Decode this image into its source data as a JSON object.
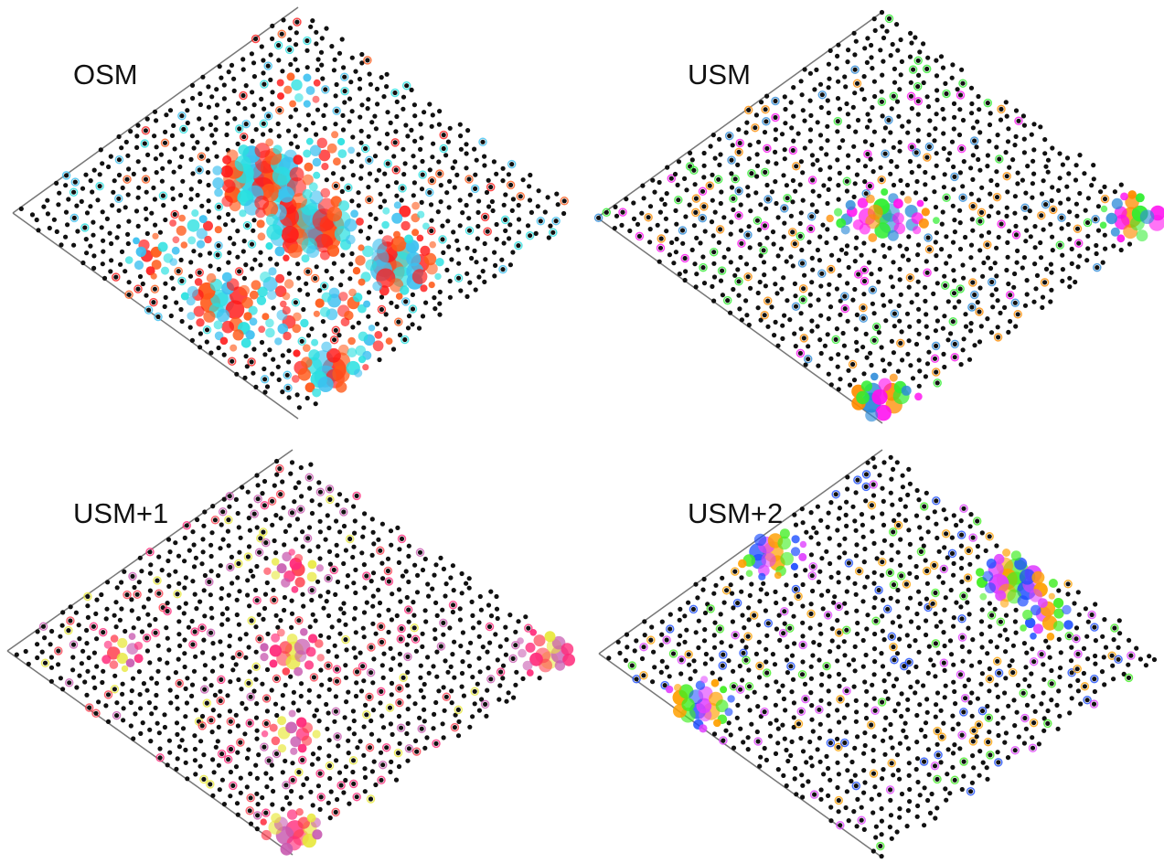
{
  "panels": [
    {
      "label": "OSM",
      "hues": [
        "#ff1a1a",
        "#ff5a1a",
        "#28e0e0",
        "#3cc0f0"
      ],
      "blobs": [
        {
          "u": 0.52,
          "v": 0.36,
          "size": 1.0
        },
        {
          "u": 0.49,
          "v": 0.55,
          "size": 0.95
        },
        {
          "u": 0.55,
          "v": 0.8,
          "size": 0.75
        },
        {
          "u": 0.15,
          "v": 0.58,
          "size": 0.62
        },
        {
          "u": 0.17,
          "v": 0.93,
          "size": 0.62
        },
        {
          "u": 0.14,
          "v": 0.35,
          "size": 0.35
        },
        {
          "u": 0.27,
          "v": 0.63,
          "size": 0.33
        },
        {
          "u": 0.35,
          "v": 0.8,
          "size": 0.33
        },
        {
          "u": 0.11,
          "v": 0.68,
          "size": 0.32
        },
        {
          "u": 0.2,
          "v": 0.75,
          "size": 0.3
        },
        {
          "u": 0.28,
          "v": 0.36,
          "size": 0.28
        },
        {
          "u": 0.3,
          "v": 0.94,
          "size": 0.26
        },
        {
          "u": 0.67,
          "v": 0.7,
          "size": 0.27
        },
        {
          "u": 0.7,
          "v": 0.4,
          "size": 0.28
        },
        {
          "u": 0.8,
          "v": 0.2,
          "size": 0.24
        }
      ]
    },
    {
      "label": "USM",
      "hues": [
        "#ff10f0",
        "#ff8c00",
        "#30ee30",
        "#2a8ad8"
      ],
      "blobs": [
        {
          "u": 0.05,
          "v": 0.95,
          "size": 0.65
        },
        {
          "u": 0.95,
          "v": 0.95,
          "size": 0.58
        },
        {
          "u": 0.5,
          "v": 0.5,
          "size": 0.55
        },
        {
          "u": 0.45,
          "v": 0.45,
          "size": 0.3
        },
        {
          "u": 0.55,
          "v": 0.55,
          "size": 0.3
        }
      ]
    },
    {
      "label": "USM+1",
      "hues": [
        "#ff2a7a",
        "#ff3f4f",
        "#e8e83a",
        "#c85ab0"
      ],
      "blobs": [
        {
          "u": 0.05,
          "v": 0.95,
          "size": 0.5
        },
        {
          "u": 0.95,
          "v": 0.95,
          "size": 0.5
        },
        {
          "u": 0.5,
          "v": 0.5,
          "size": 0.45
        },
        {
          "u": 0.3,
          "v": 0.7,
          "size": 0.35
        },
        {
          "u": 0.7,
          "v": 0.3,
          "size": 0.35
        },
        {
          "u": 0.2,
          "v": 0.2,
          "size": 0.3
        }
      ]
    },
    {
      "label": "USM+2",
      "hues": [
        "#1a4cff",
        "#e040ff",
        "#ffa000",
        "#40ee20"
      ],
      "blobs": [
        {
          "u": 0.92,
          "v": 0.55,
          "size": 0.7
        },
        {
          "u": 0.05,
          "v": 0.3,
          "size": 0.55
        },
        {
          "u": 0.55,
          "v": 0.05,
          "size": 0.55
        },
        {
          "u": 0.88,
          "v": 0.7,
          "size": 0.4
        }
      ]
    }
  ]
}
